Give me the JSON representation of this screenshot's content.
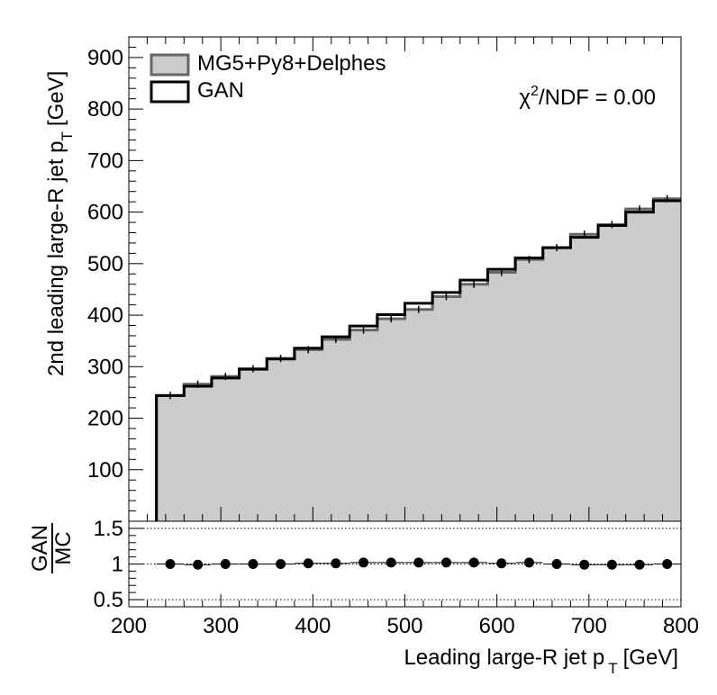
{
  "chart_data": [
    {
      "type": "step",
      "panel": "main",
      "xlabel_main": "Leading large-R jet p",
      "xlabel_sub": "T",
      "xlabel_unit": "[GeV]",
      "ylabel_main": "2nd leading large-R jet p",
      "ylabel_sub": "T",
      "ylabel_unit": "[GeV]",
      "xlim": [
        200,
        800
      ],
      "ylim": [
        0,
        940
      ],
      "xticks": [
        "200",
        "300",
        "400",
        "500",
        "600",
        "700",
        "800"
      ],
      "yticks": [
        "100",
        "200",
        "300",
        "400",
        "500",
        "600",
        "700",
        "800",
        "900"
      ],
      "bin_edges": [
        230,
        260,
        290,
        320,
        350,
        380,
        410,
        440,
        470,
        500,
        530,
        560,
        590,
        620,
        650,
        680,
        710,
        740,
        770,
        800
      ],
      "series": [
        {
          "name": "MG5+Py8+Delphes",
          "style": "filled",
          "fill": "#cccccc",
          "line": "#666666",
          "values": [
            244,
            266,
            281,
            296,
            316,
            333,
            353,
            371,
            393,
            411,
            436,
            460,
            483,
            508,
            531,
            557,
            576,
            606,
            626
          ]
        },
        {
          "name": "GAN",
          "style": "line",
          "line": "#000000",
          "values": [
            244,
            262,
            278,
            295,
            315,
            336,
            358,
            379,
            401,
            423,
            444,
            468,
            489,
            511,
            531,
            551,
            574,
            600,
            622
          ]
        }
      ],
      "legend_position": "top-left",
      "annotation": {
        "chi": "χ",
        "sup": "2",
        "rest": "/NDF = 0.00"
      }
    },
    {
      "type": "scatter",
      "panel": "ratio",
      "ylabel_num": "GAN",
      "ylabel_den": "MC",
      "ylim": [
        0.4,
        1.6
      ],
      "yticks": [
        "0.5",
        "1",
        "1.5"
      ],
      "x": [
        245,
        275,
        305,
        335,
        365,
        395,
        425,
        455,
        485,
        515,
        545,
        575,
        605,
        635,
        665,
        695,
        725,
        755,
        785
      ],
      "y": [
        1.0,
        0.99,
        1.0,
        1.0,
        1.0,
        1.01,
        1.01,
        1.02,
        1.02,
        1.02,
        1.02,
        1.02,
        1.01,
        1.02,
        1.0,
        0.99,
        0.99,
        0.99,
        1.0
      ],
      "reference_lines": [
        0.5,
        1.0,
        1.5
      ]
    }
  ]
}
